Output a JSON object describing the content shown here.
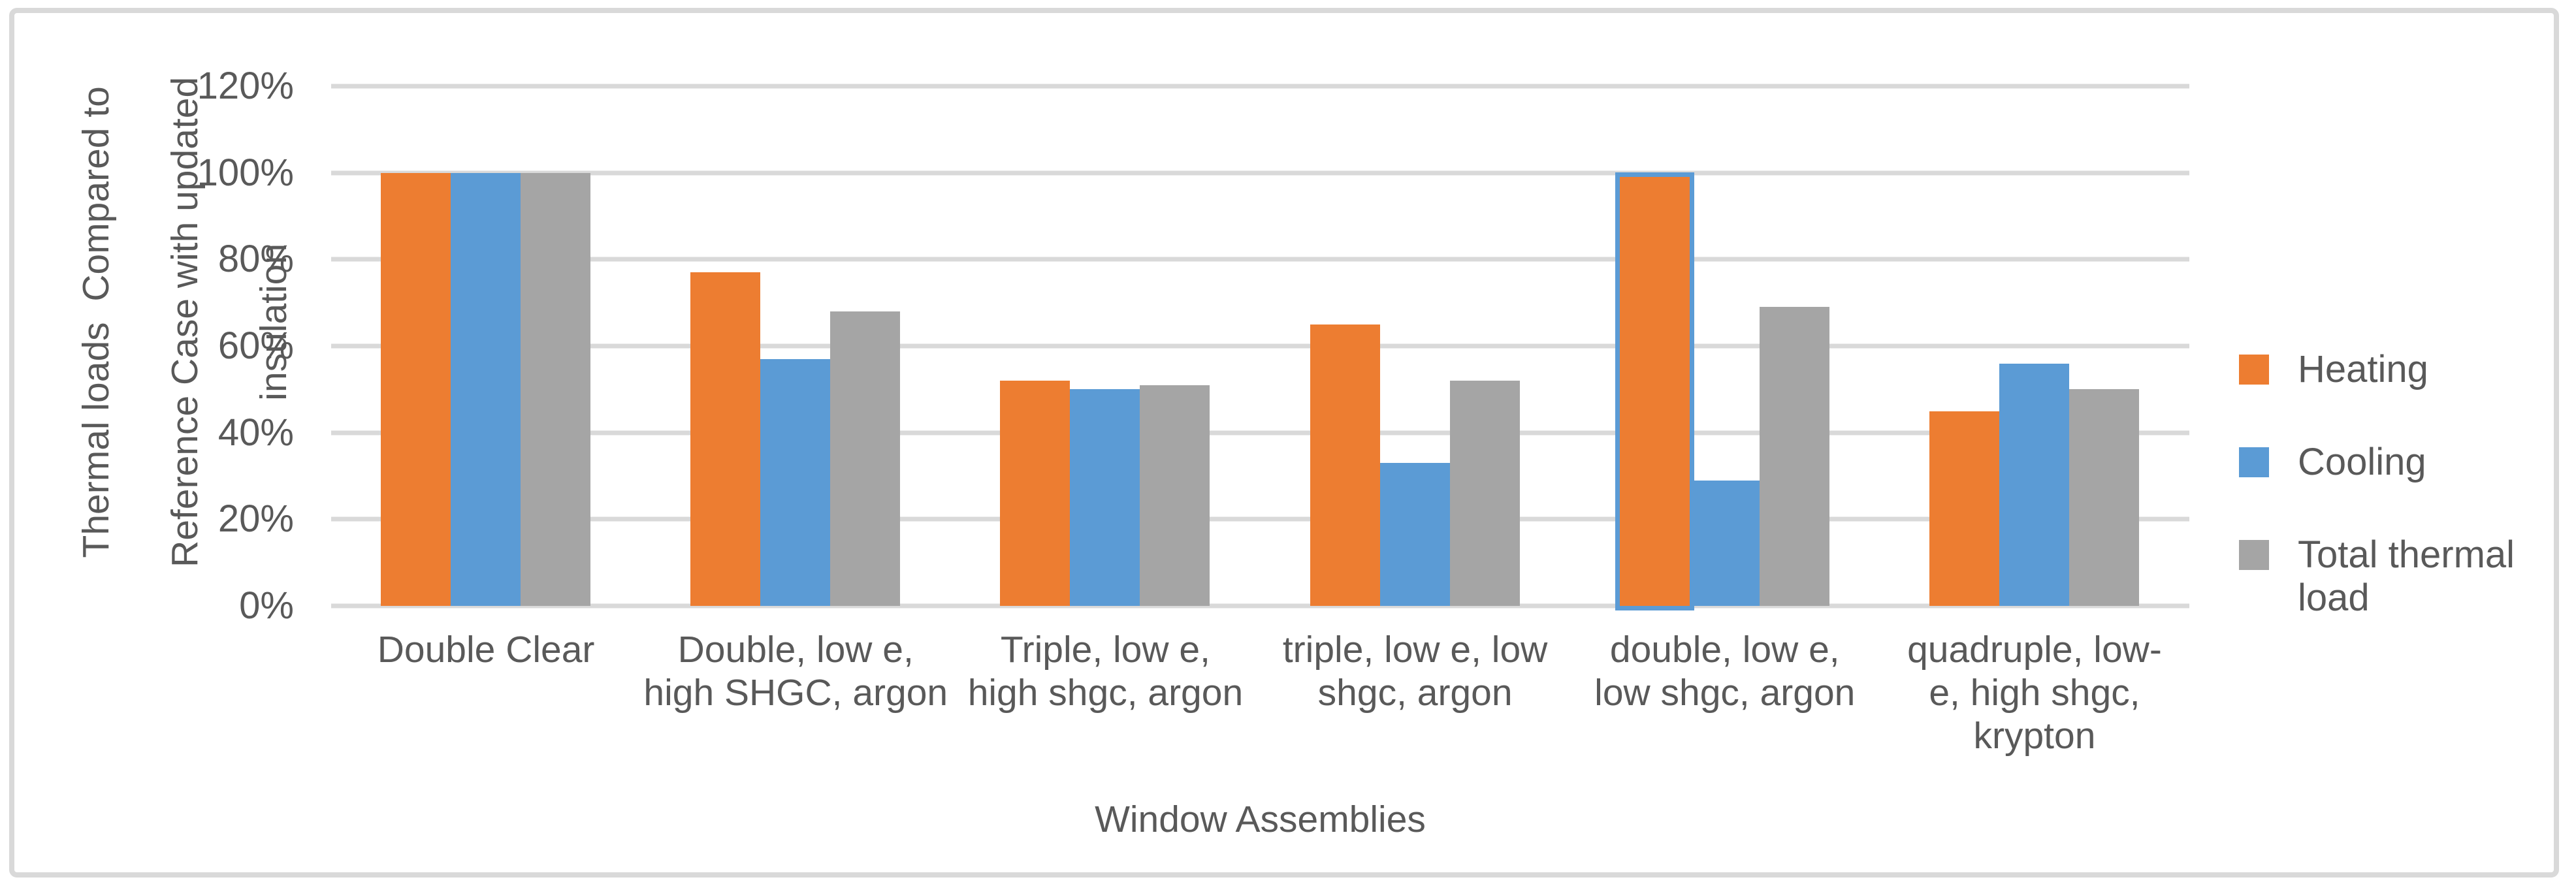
{
  "chart_data": {
    "type": "bar",
    "title": "",
    "xlabel": "Window Assemblies",
    "ylabel": "Thermal loads  Compared to Reference Case with updated insulation",
    "ylabel_lines": [
      "Thermal loads  Compared to",
      "Reference Case with updated",
      "insulation"
    ],
    "ylim": [
      0,
      120
    ],
    "y_tick_labels": [
      "120%",
      "100%",
      "80%",
      "60%",
      "40%",
      "20%",
      "0%"
    ],
    "y_tick_values": [
      120,
      100,
      80,
      60,
      40,
      20,
      0
    ],
    "grid": true,
    "legend_position": "right",
    "categories": [
      "Double Clear",
      "Double, low e, high SHGC, argon",
      "Triple, low e, high shgc, argon",
      "triple, low e, low shgc, argon",
      "double, low e, low shgc, argon",
      "quadruple, low-e, high shgc, krypton"
    ],
    "category_label_lines": [
      "Double Clear",
      "Double, low e,\nhigh SHGC, argon",
      "Triple, low e,\nhigh shgc, argon",
      "triple, low e, low\nshgc, argon",
      "double, low e,\nlow shgc, argon",
      "quadruple, low-\ne, high shgc,\nkrypton"
    ],
    "series": [
      {
        "name": "Heating",
        "color": "#ED7D31",
        "values": [
          100,
          77,
          52,
          65,
          99,
          45
        ]
      },
      {
        "name": "Cooling",
        "color": "#5B9BD5",
        "values": [
          100,
          57,
          50,
          33,
          29,
          56
        ]
      },
      {
        "name": "Total thermal load",
        "color": "#A5A5A5",
        "values": [
          100,
          68,
          51,
          52,
          69,
          50
        ]
      }
    ],
    "highlight": {
      "series_index": 0,
      "category_index": 4,
      "outline_color": "#5B9BD5"
    }
  },
  "colors": {
    "text": "#595959",
    "gridline": "#D9D9D9",
    "frame_border": "#D9D9D9",
    "background": "#FFFFFF"
  }
}
